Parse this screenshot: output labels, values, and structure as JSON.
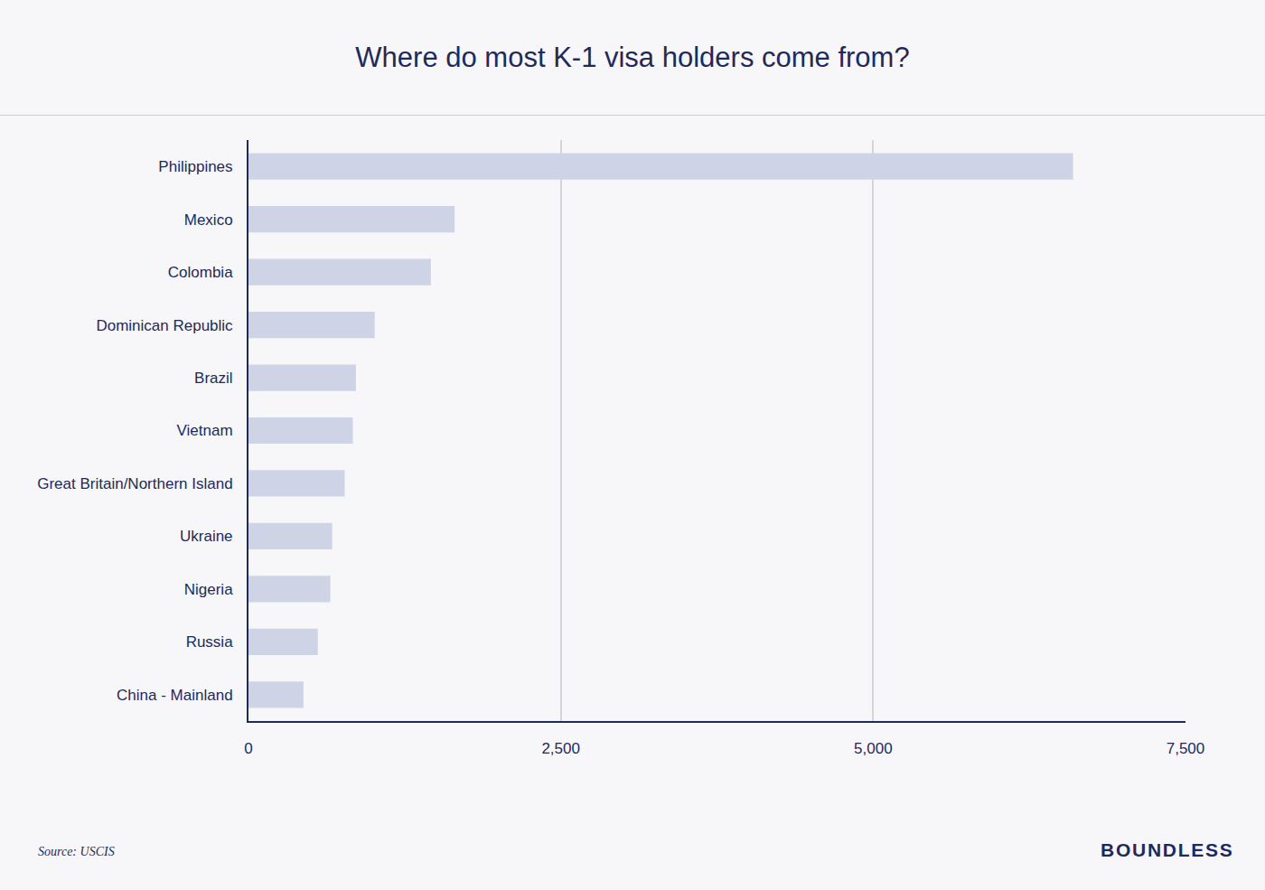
{
  "chart_data": {
    "type": "bar",
    "orientation": "horizontal",
    "title": "Where do most K-1 visa holders come from?",
    "categories": [
      "Philippines",
      "Mexico",
      "Colombia",
      "Dominican Republic",
      "Brazil",
      "Vietnam",
      "Great Britain/Northern Island",
      "Ukraine",
      "Nigeria",
      "Russia",
      "China - Mainland"
    ],
    "values": [
      6600,
      1650,
      1460,
      1010,
      860,
      835,
      770,
      670,
      655,
      555,
      440
    ],
    "color": "#cfd3e6",
    "xlim": [
      0,
      7500
    ],
    "xticks": [
      0,
      {
        "value": 2500,
        "label": "2,500"
      },
      {
        "value": 5000,
        "label": "5,000"
      },
      {
        "value": 7500,
        "label": "7,500"
      }
    ],
    "grid": true,
    "source": "Source: USCIS",
    "brand": "BOUNDLESS"
  }
}
